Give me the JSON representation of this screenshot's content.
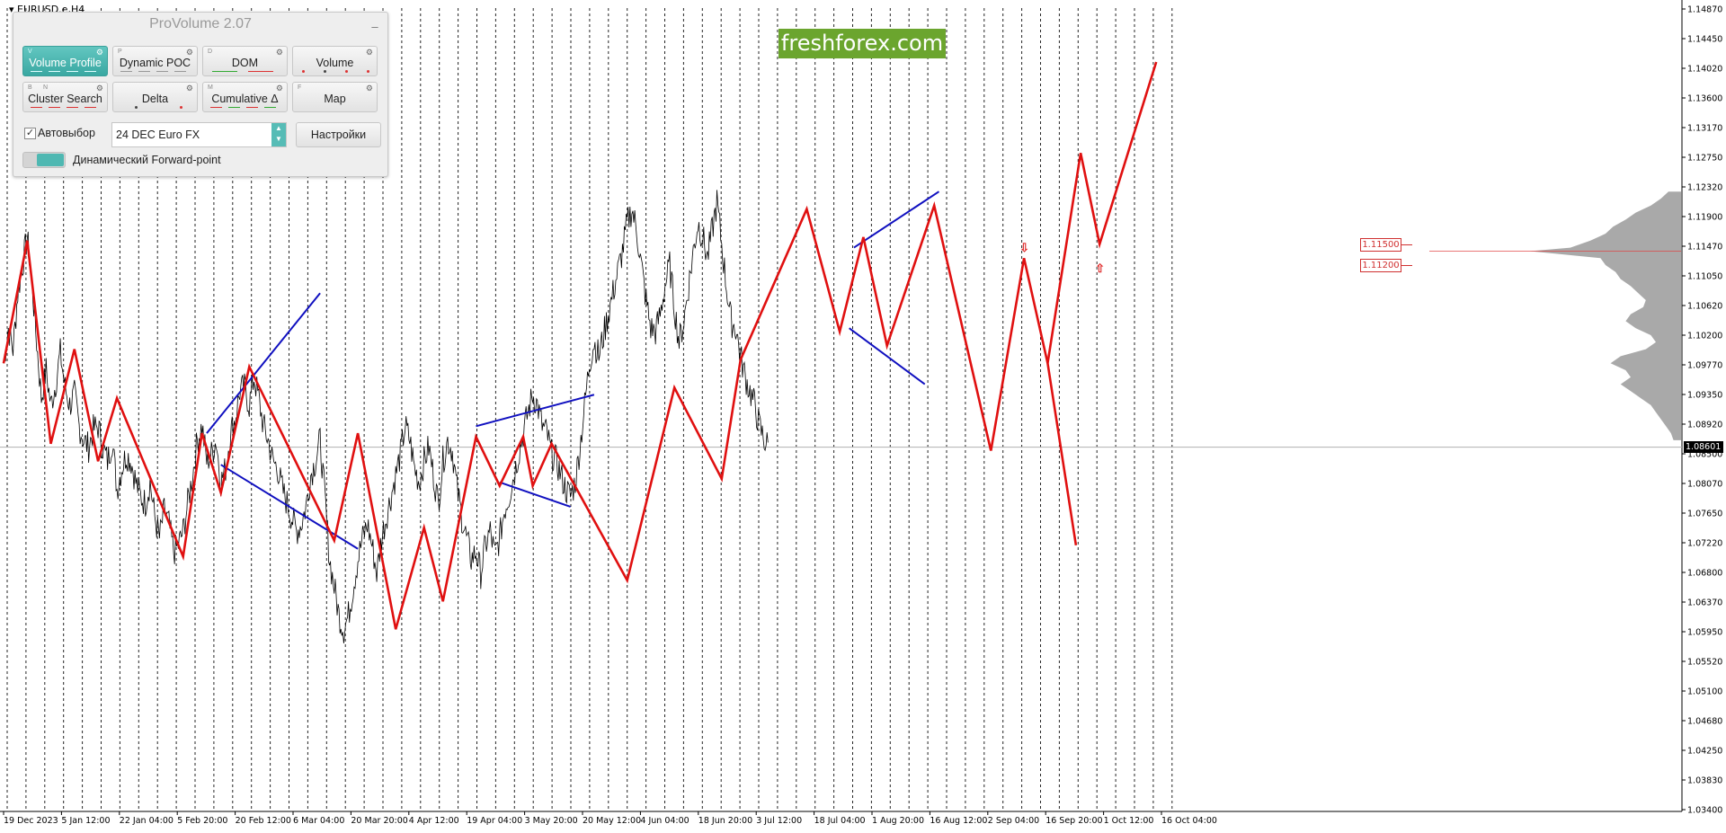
{
  "chart_window": {
    "symbol_label": "EURUSD.e,H4",
    "current_price": "1.08601",
    "price_axis_labels": [
      "1.14870",
      "1.14450",
      "1.14020",
      "1.13600",
      "1.13170",
      "1.12750",
      "1.12320",
      "1.11900",
      "1.11470",
      "1.11050",
      "1.10620",
      "1.10200",
      "1.09770",
      "1.09350",
      "1.08920",
      "1.08500",
      "1.08070",
      "1.07650",
      "1.07220",
      "1.06800",
      "1.06370",
      "1.05950",
      "1.05520",
      "1.05100",
      "1.04680",
      "1.04250",
      "1.03830",
      "1.03400"
    ],
    "time_axis_labels": [
      "19 Dec 2023",
      "5 Jan 12:00",
      "22 Jan 04:00",
      "5 Feb 20:00",
      "20 Feb 12:00",
      "6 Mar 04:00",
      "20 Mar 20:00",
      "4 Apr 12:00",
      "19 Apr 04:00",
      "3 May 20:00",
      "20 May 12:00",
      "4 Jun 04:00",
      "18 Jun 20:00",
      "3 Jul 12:00",
      "18 Jul 04:00",
      "1 Aug 20:00",
      "16 Aug 12:00",
      "2 Sep 04:00",
      "16 Sep 20:00",
      "1 Oct 12:00",
      "16 Oct 04:00"
    ]
  },
  "chart_data": {
    "type": "line",
    "title": "",
    "price_range": [
      1.034,
      1.1487
    ],
    "price_series": [
      1.098,
      1.103,
      1.1,
      1.108,
      1.112,
      1.116,
      1.1096,
      1.101,
      1.093,
      1.097,
      1.092,
      1.095,
      1.0995,
      1.0945,
      1.092,
      1.0935,
      1.089,
      1.087,
      1.086,
      1.0885,
      1.089,
      1.086,
      1.084,
      1.087,
      1.08,
      1.083,
      1.085,
      1.084,
      1.081,
      1.079,
      1.078,
      1.081,
      1.076,
      1.073,
      1.077,
      1.075,
      1.071,
      1.072,
      1.074,
      1.078,
      1.082,
      1.087,
      1.089,
      1.084,
      1.085,
      1.087,
      1.081,
      1.083,
      1.088,
      1.09,
      1.094,
      1.0945,
      1.092,
      1.096,
      1.093,
      1.089,
      1.087,
      1.084,
      1.083,
      1.08,
      1.078,
      1.076,
      1.074,
      1.075,
      1.0775,
      1.082,
      1.084,
      1.087,
      1.079,
      1.07,
      1.066,
      1.062,
      1.06,
      1.062,
      1.066,
      1.07,
      1.073,
      1.075,
      1.072,
      1.068,
      1.073,
      1.076,
      1.079,
      1.082,
      1.085,
      1.089,
      1.087,
      1.083,
      1.081,
      1.084,
      1.086,
      1.082,
      1.078,
      1.084,
      1.087,
      1.0855,
      1.08,
      1.076,
      1.073,
      1.07,
      1.071,
      1.068,
      1.072,
      1.074,
      1.0705,
      1.073,
      1.077,
      1.079,
      1.082,
      1.085,
      1.088,
      1.091,
      1.0935,
      1.092,
      1.089,
      1.088,
      1.085,
      1.084,
      1.082,
      1.08,
      1.079,
      1.081,
      1.086,
      1.092,
      1.098,
      1.101,
      1.099,
      1.102,
      1.105,
      1.108,
      1.111,
      1.114,
      1.118,
      1.12,
      1.117,
      1.112,
      1.107,
      1.103,
      1.1025,
      1.105,
      1.109,
      1.112,
      1.106,
      1.101,
      1.104,
      1.109,
      1.114,
      1.118,
      1.116,
      1.113,
      1.117,
      1.121,
      1.115,
      1.109,
      1.104,
      1.103,
      1.099,
      1.096,
      1.094,
      1.092,
      1.089,
      1.087,
      1.086
    ],
    "zigzag_red": [
      [
        0,
        1.098
      ],
      [
        5,
        1.1155
      ],
      [
        10,
        1.0865
      ],
      [
        15,
        1.1
      ],
      [
        20,
        1.084
      ],
      [
        24,
        1.093
      ],
      [
        38,
        1.0704
      ],
      [
        42,
        1.088
      ],
      [
        46,
        1.0795
      ],
      [
        52,
        1.0975
      ],
      [
        70,
        1.0727
      ],
      [
        75,
        1.088
      ],
      [
        83,
        1.06
      ],
      [
        89,
        1.0745
      ],
      [
        93,
        1.064
      ],
      [
        100,
        1.0875
      ],
      [
        105,
        1.0805
      ],
      [
        110,
        1.0875
      ],
      [
        112,
        1.0805
      ],
      [
        116,
        1.0865
      ],
      [
        132,
        1.067
      ],
      [
        142,
        1.0945
      ],
      [
        152,
        1.0815
      ],
      [
        156,
        1.0985
      ],
      [
        170,
        1.12
      ],
      [
        177,
        1.1025
      ],
      [
        182,
        1.116
      ],
      [
        187,
        1.1005
      ],
      [
        197,
        1.1205
      ],
      [
        209,
        1.0855
      ]
    ],
    "forecast_red": [
      [
        209,
        1.0855
      ],
      [
        216,
        1.113
      ],
      [
        221,
        1.098
      ],
      [
        227,
        1.072
      ]
    ],
    "forecast_red_2": [
      [
        221,
        1.098
      ],
      [
        228,
        1.128
      ],
      [
        232,
        1.115
      ],
      [
        244,
        1.141
      ]
    ],
    "blue_lines": [
      [
        [
          43,
          1.088
        ],
        [
          67,
          1.108
        ]
      ],
      [
        [
          46,
          1.0835
        ],
        [
          75,
          1.0715
        ]
      ],
      [
        [
          100,
          1.089
        ],
        [
          125,
          1.0935
        ]
      ],
      [
        [
          105,
          1.081
        ],
        [
          120,
          1.0775
        ]
      ],
      [
        [
          180,
          1.1145
        ],
        [
          198,
          1.1225
        ]
      ],
      [
        [
          179,
          1.103
        ],
        [
          195,
          1.095
        ]
      ]
    ],
    "levels": [
      {
        "label": "1.11500",
        "price": 1.115
      },
      {
        "label": "1.11200",
        "price": 1.112
      }
    ],
    "arrows": [
      {
        "glyph": "⇩",
        "index": 216,
        "price": 1.1145
      },
      {
        "glyph": "⇧",
        "index": 232,
        "price": 1.1115
      }
    ],
    "volume_profile": [
      [
        1.1225,
        0.05
      ],
      [
        1.1215,
        0.08
      ],
      [
        1.1205,
        0.12
      ],
      [
        1.1195,
        0.18
      ],
      [
        1.1185,
        0.22
      ],
      [
        1.1175,
        0.27
      ],
      [
        1.1165,
        0.3
      ],
      [
        1.1155,
        0.36
      ],
      [
        1.1145,
        0.44
      ],
      [
        1.114,
        0.6
      ],
      [
        1.113,
        0.32
      ],
      [
        1.112,
        0.3
      ],
      [
        1.111,
        0.26
      ],
      [
        1.11,
        0.24
      ],
      [
        1.109,
        0.2
      ],
      [
        1.108,
        0.17
      ],
      [
        1.107,
        0.14
      ],
      [
        1.106,
        0.15
      ],
      [
        1.105,
        0.2
      ],
      [
        1.104,
        0.22
      ],
      [
        1.103,
        0.18
      ],
      [
        1.102,
        0.12
      ],
      [
        1.101,
        0.1
      ],
      [
        1.1,
        0.14
      ],
      [
        1.099,
        0.24
      ],
      [
        1.098,
        0.28
      ],
      [
        1.097,
        0.22
      ],
      [
        1.096,
        0.2
      ],
      [
        1.095,
        0.24
      ],
      [
        1.094,
        0.2
      ],
      [
        1.093,
        0.16
      ],
      [
        1.092,
        0.12
      ],
      [
        1.091,
        0.1
      ],
      [
        1.09,
        0.08
      ],
      [
        1.089,
        0.06
      ],
      [
        1.088,
        0.04
      ],
      [
        1.087,
        0.03
      ]
    ]
  },
  "panel": {
    "title": "ProVolume 2.07",
    "buttons_row1": [
      {
        "label": "Volume Profile",
        "key": "V",
        "key2": ""
      },
      {
        "label": "Dynamic POC",
        "key": "P",
        "key2": ""
      },
      {
        "label": "DOM",
        "key": "D",
        "key2": ""
      },
      {
        "label": "Volume",
        "key": "",
        "key2": ""
      }
    ],
    "buttons_row2": [
      {
        "label": "Cluster Search",
        "key": "B",
        "key2": "N"
      },
      {
        "label": "Delta",
        "key": "",
        "key2": ""
      },
      {
        "label": "Cumulative Δ",
        "key": "M",
        "key2": ""
      },
      {
        "label": "Map",
        "key": "F",
        "key2": ""
      }
    ],
    "auto_select_label": "Автовыбор",
    "instrument_value": "24 DEC Euro FX",
    "settings_label": "Настройки",
    "forward_point_label": "Динамический Forward-point",
    "colors": {
      "accent": "#4fb8b2"
    }
  },
  "brand": {
    "text": "freshforex.com",
    "color": "#6ba52e"
  },
  "colors": {
    "zigzag": "#e01010",
    "trendlines": "#1010c0",
    "profile": "#a0a0a0",
    "grid": "#000000"
  }
}
